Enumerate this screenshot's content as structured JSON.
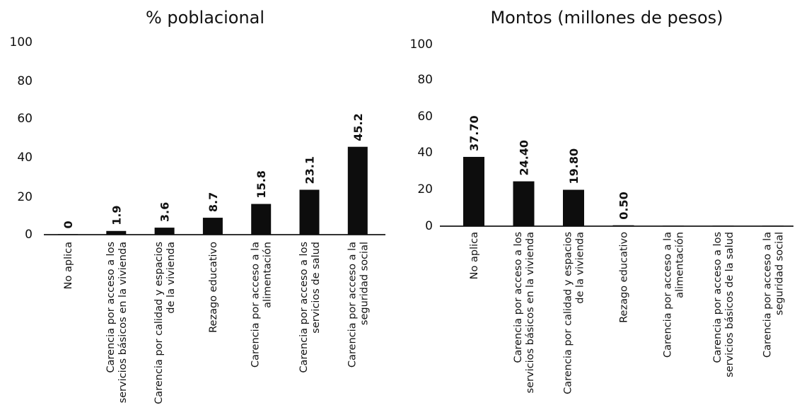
{
  "chart_data": [
    {
      "type": "bar",
      "title": "% poblacional",
      "categories": [
        "No aplica",
        "Carencia por acceso a los servicios básicos en la vivienda",
        "Carencia por calidad y espacios de la vivienda",
        "Rezago educativo",
        "Carencia por acceso a la alimentación",
        "Carencia por acceso a los servicios de salud",
        "Carencia por acceso a la seguridad social"
      ],
      "category_lines": [
        [
          "No aplica"
        ],
        [
          "Carencia por acceso a los",
          "servicios básicos en la vivienda"
        ],
        [
          "Carencia por calidad y espacios",
          "de la vivienda"
        ],
        [
          "Rezago educativo"
        ],
        [
          "Carencia por acceso a la",
          "alimentación"
        ],
        [
          "Carencia por acceso a los",
          "servicios de salud"
        ],
        [
          "Carencia por acceso a la",
          "seguridad social"
        ]
      ],
      "values": [
        0,
        1.9,
        3.6,
        8.7,
        15.8,
        23.1,
        45.2
      ],
      "value_labels": [
        "0",
        "1.9",
        "3.6",
        "8.7",
        "15.8",
        "23.1",
        "45.2"
      ],
      "yticks": [
        "0",
        "20",
        "40",
        "60",
        "80",
        "100"
      ],
      "ylim": [
        0,
        100
      ],
      "xlabel": "",
      "ylabel": "",
      "grid": false,
      "color": "#0d0d0d"
    },
    {
      "type": "bar",
      "title": "Montos (millones de pesos)",
      "categories": [
        "No aplica",
        "Carencia por acceso a los servicios básicos en la vivienda",
        "Carencia por calidad y espacios de la vivienda",
        "Rezago educativo",
        "Carencia por acceso a la alimentación",
        "Carencia por acceso a los servicios básicos de la salud",
        "Carencia por acceso a la seguridad social"
      ],
      "category_lines": [
        [
          "No aplica"
        ],
        [
          "Carencia por acceso a los",
          "servicios básicos en la vivienda"
        ],
        [
          "Carencia por calidad y espacios",
          "de la vivienda"
        ],
        [
          "Rezago educativo"
        ],
        [
          "Carencia por acceso a la",
          "alimentación"
        ],
        [
          "Carencia por acceso a los",
          "servicios básicos de la salud"
        ],
        [
          "Carencia por acceso a la",
          "seguridad social"
        ]
      ],
      "values": [
        37.7,
        24.4,
        19.8,
        0.5,
        0,
        0,
        0
      ],
      "value_labels": [
        "37.70",
        "24.40",
        "19.80",
        "0.50",
        "",
        "",
        ""
      ],
      "yticks": [
        "0",
        "20",
        "40",
        "60",
        "80",
        "100"
      ],
      "ylim": [
        0,
        100
      ],
      "xlabel": "",
      "ylabel": "",
      "grid": false,
      "color": "#0d0d0d"
    }
  ]
}
